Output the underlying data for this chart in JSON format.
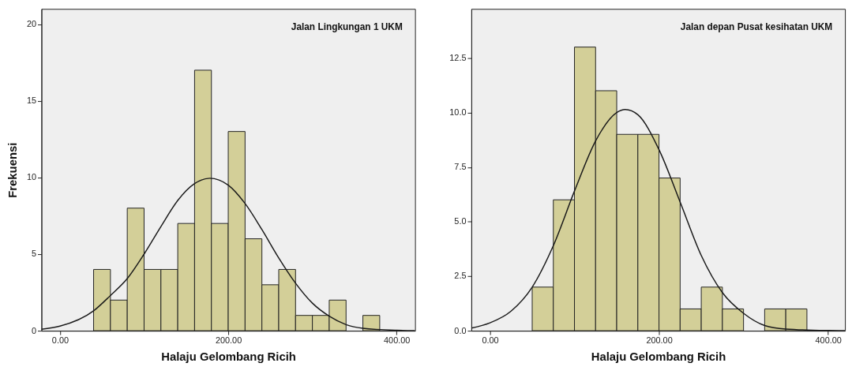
{
  "chart_data": [
    {
      "type": "histogram",
      "title": "Jalan Lingkungan 1 UKM",
      "xlabel": "Halaju Gelombang Ricih",
      "ylabel": "Frekuensi",
      "color": "#d3cf98",
      "bins": [
        40,
        60,
        80,
        100,
        120,
        140,
        160,
        180,
        200,
        220,
        240,
        260,
        280,
        300,
        320,
        340,
        360,
        380
      ],
      "values": [
        4,
        2,
        8,
        4,
        4,
        7,
        17,
        7,
        13,
        6,
        3,
        4,
        1,
        1,
        2,
        0,
        1
      ],
      "series": [
        {
          "type": "line",
          "color": "#1a1a1a",
          "x": [
            -22,
            0,
            40,
            60,
            80,
            100,
            120,
            140,
            160,
            178,
            200,
            220,
            240,
            260,
            280,
            300,
            320,
            340,
            360,
            400,
            422
          ],
          "values": [
            0.1,
            0.3,
            1.3,
            2.3,
            3.4,
            5.0,
            6.8,
            8.5,
            9.6,
            9.95,
            9.5,
            8.3,
            6.6,
            4.75,
            3.1,
            1.8,
            0.95,
            0.4,
            0.16,
            0.03,
            0.01
          ]
        }
      ],
      "xlim": [
        -22,
        422
      ],
      "xticks": [
        {
          "value": 0,
          "label": "0.00"
        },
        {
          "value": 200,
          "label": "200.00"
        },
        {
          "value": 400,
          "label": "400.00"
        }
      ],
      "ylim": [
        0,
        21
      ],
      "yticks": [
        0,
        5,
        10,
        15,
        20
      ],
      "grid": false
    },
    {
      "type": "histogram",
      "title": "Jalan depan Pusat kesihatan UKM",
      "xlabel": "Halaju Gelombang Ricih",
      "color": "#d3cf98",
      "bins": [
        50,
        75,
        100,
        125,
        150,
        175,
        200,
        225,
        250,
        275,
        300,
        325,
        350,
        375
      ],
      "values": [
        2,
        6,
        13,
        11,
        9,
        9,
        7,
        1,
        2,
        1,
        0,
        1,
        1
      ],
      "series": [
        {
          "type": "line",
          "color": "#1a1a1a",
          "x": [
            -22,
            0,
            25,
            50,
            75,
            100,
            125,
            150,
            160,
            175,
            200,
            225,
            250,
            275,
            300,
            325,
            350,
            400,
            420
          ],
          "values": [
            0.12,
            0.36,
            0.9,
            2.0,
            3.9,
            6.4,
            8.7,
            10.0,
            10.14,
            9.9,
            8.3,
            5.9,
            3.45,
            1.75,
            0.8,
            0.24,
            0.08,
            0.01,
            0
          ]
        }
      ],
      "xlim": [
        -22,
        420
      ],
      "xticks": [
        {
          "value": 0,
          "label": "0.00"
        },
        {
          "value": 200,
          "label": "200.00"
        },
        {
          "value": 400,
          "label": "400.00"
        }
      ],
      "ylim": [
        0,
        14.75
      ],
      "yticks": [
        {
          "value": 0,
          "label": "0.0"
        },
        2.5,
        {
          "value": 5,
          "label": "5.0"
        },
        7.5,
        {
          "value": 10,
          "label": "10.0"
        },
        12.5
      ],
      "grid": false
    }
  ]
}
